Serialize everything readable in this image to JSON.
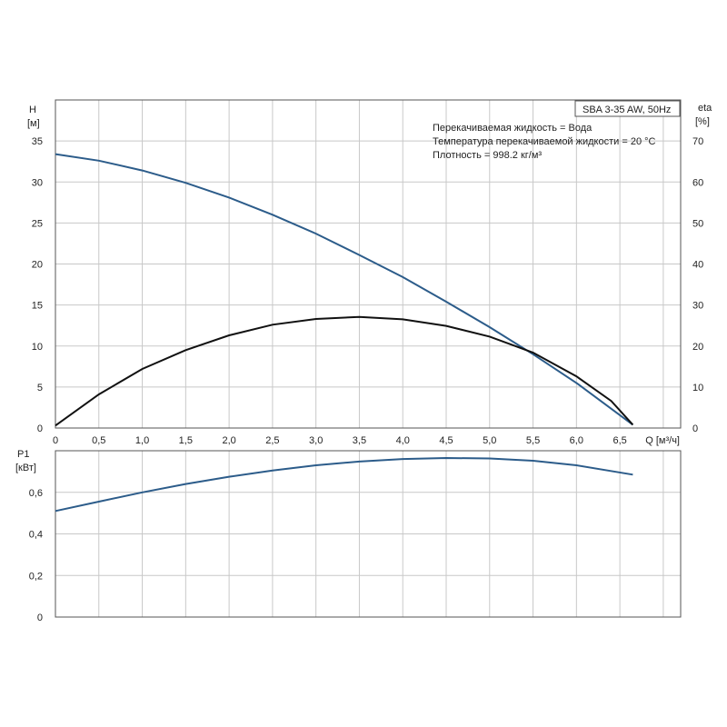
{
  "chart_data": [
    {
      "type": "line",
      "panel": "top",
      "title_box": "SBA 3-35 AW, 50Hz",
      "annotations": [
        "Перекачиваемая жидкость = Вода",
        "Температура перекачиваемой жидкости = 20 °C",
        "Плотность = 998.2 кг/м³"
      ],
      "ylabel_left": [
        "H",
        "[м]"
      ],
      "ylabel_right": [
        "eta",
        "[%]"
      ],
      "xlabel": "Q [м³/ч]",
      "xlim": [
        0,
        7.2
      ],
      "ylim_left": [
        0,
        40
      ],
      "ylim_right": [
        0,
        80
      ],
      "x_ticks": [
        "0",
        "0,5",
        "1,0",
        "1,5",
        "2,0",
        "2,5",
        "3,0",
        "3,5",
        "4,0",
        "4,5",
        "5,0",
        "5,5",
        "6,0",
        "6,5"
      ],
      "x_tick_values": [
        0,
        0.5,
        1.0,
        1.5,
        2.0,
        2.5,
        3.0,
        3.5,
        4.0,
        4.5,
        5.0,
        5.5,
        6.0,
        6.5
      ],
      "y_ticks_left": [
        "0",
        "5",
        "10",
        "15",
        "20",
        "25",
        "30",
        "35"
      ],
      "y_tick_values_left": [
        0,
        5,
        10,
        15,
        20,
        25,
        30,
        35
      ],
      "y_ticks_right": [
        "0",
        "10",
        "20",
        "30",
        "40",
        "50",
        "60",
        "70"
      ],
      "y_tick_values_right": [
        0,
        10,
        20,
        30,
        40,
        50,
        60,
        70
      ],
      "grid": true,
      "series": [
        {
          "axis": "left",
          "color": "#2c5c8a",
          "x": [
            0,
            0.5,
            1.0,
            1.5,
            2.0,
            2.5,
            3.0,
            3.5,
            4.0,
            4.5,
            5.0,
            5.5,
            6.0,
            6.65
          ],
          "y": [
            33.4,
            32.6,
            31.4,
            29.9,
            28.1,
            26.0,
            23.7,
            21.1,
            18.4,
            15.4,
            12.3,
            9.0,
            5.5,
            0.4
          ]
        },
        {
          "axis": "right",
          "color": "#111111",
          "x": [
            0,
            0.5,
            1.0,
            1.5,
            2.0,
            2.5,
            3.0,
            3.5,
            4.0,
            4.5,
            5.0,
            5.5,
            6.0,
            6.4,
            6.65
          ],
          "y": [
            0.6,
            8.2,
            14.4,
            19.0,
            22.6,
            25.2,
            26.6,
            27.1,
            26.5,
            24.9,
            22.3,
            18.4,
            12.6,
            6.6,
            0.8
          ]
        }
      ]
    },
    {
      "type": "line",
      "panel": "bottom",
      "ylabel": [
        "P1",
        "[кВт]"
      ],
      "xlim": [
        0,
        7.2
      ],
      "ylim": [
        0,
        0.8
      ],
      "y_ticks": [
        "0",
        "0,2",
        "0,4",
        "0,6"
      ],
      "y_tick_values": [
        0,
        0.2,
        0.4,
        0.6
      ],
      "grid": true,
      "series": [
        {
          "color": "#2c5c8a",
          "x": [
            0,
            0.5,
            1.0,
            1.5,
            2.0,
            2.5,
            3.0,
            3.5,
            4.0,
            4.5,
            5.0,
            5.5,
            6.0,
            6.65
          ],
          "y": [
            0.51,
            0.555,
            0.6,
            0.64,
            0.675,
            0.705,
            0.73,
            0.748,
            0.76,
            0.765,
            0.763,
            0.752,
            0.73,
            0.685
          ]
        }
      ]
    }
  ]
}
